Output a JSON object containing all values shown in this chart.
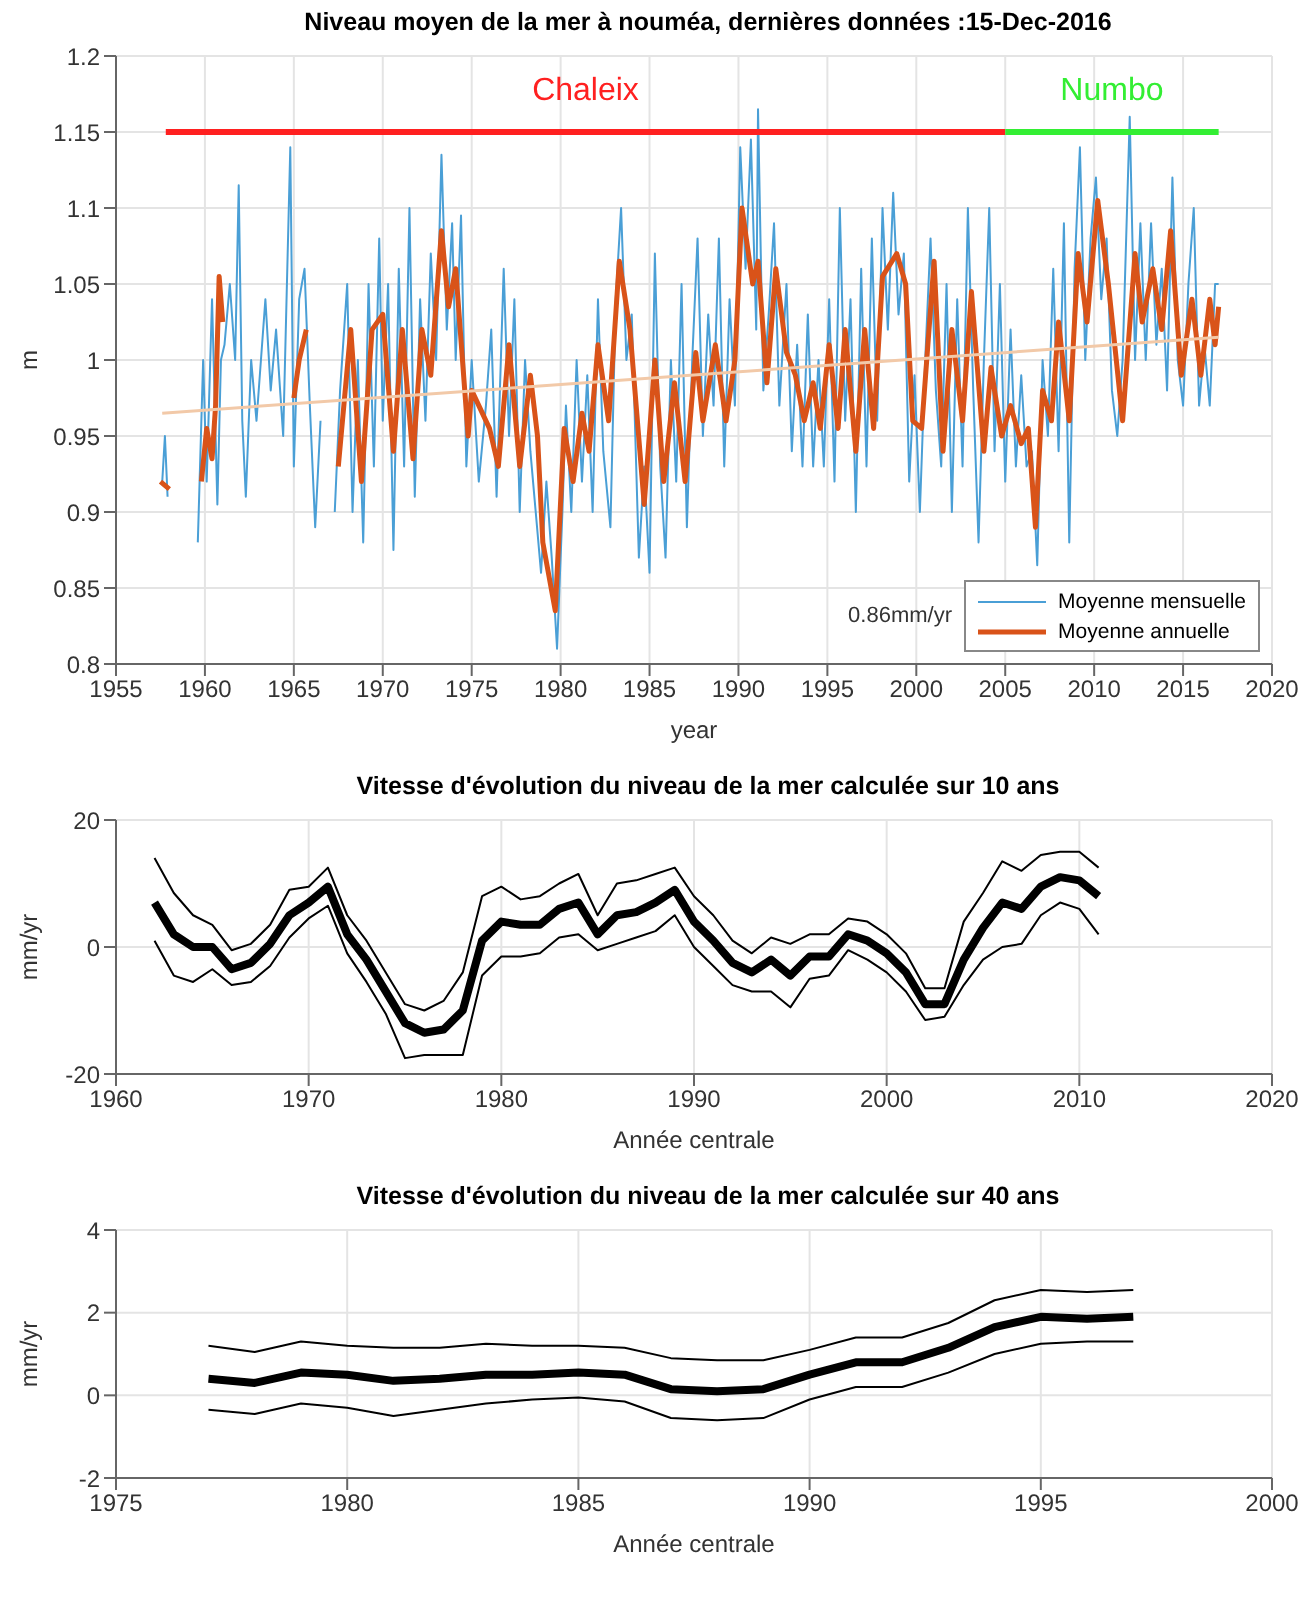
{
  "chart_data": [
    {
      "type": "line",
      "title": "Niveau moyen de la mer à nouméa, dernières données :15-Dec-2016",
      "xlabel": "year",
      "ylabel": "m",
      "xlim": [
        1955,
        2020
      ],
      "xticks": [
        1955,
        1960,
        1965,
        1970,
        1975,
        1980,
        1985,
        1990,
        1995,
        2000,
        2005,
        2010,
        2015,
        2020
      ],
      "ylim": [
        0.8,
        1.2
      ],
      "yticks": [
        0.8,
        0.85,
        0.9,
        0.95,
        1,
        1.05,
        1.1,
        1.15,
        1.2
      ],
      "grid": true,
      "legend": "bottom right",
      "annotations": [
        "0.86mm/yr"
      ],
      "series": [
        {
          "name": "Moyenne mensuelle",
          "color": "#4a9fd6",
          "x": [
            1957.6,
            1957.75,
            1957.9,
            1958.5,
            1959.6,
            1959.9,
            1960.1,
            1960.4,
            1960.7,
            1960.9,
            1961.1,
            1961.4,
            1961.7,
            1961.9,
            1962.1,
            1962.3,
            1962.6,
            1962.9,
            1963.4,
            1963.7,
            1964.0,
            1964.4,
            1964.8,
            1965.0,
            1965.3,
            1965.6,
            1965.9,
            1966.2,
            1966.5,
            1966.9,
            1967.3,
            1967.6,
            1968.0,
            1968.3,
            1968.6,
            1968.9,
            1969.2,
            1969.5,
            1969.8,
            1970.0,
            1970.3,
            1970.6,
            1970.9,
            1971.2,
            1971.5,
            1971.8,
            1972.1,
            1972.4,
            1972.7,
            1973.0,
            1973.3,
            1973.6,
            1973.9,
            1974.1,
            1974.4,
            1974.7,
            1975.0,
            1975.4,
            1975.8,
            1976.1,
            1976.4,
            1976.8,
            1977.1,
            1977.4,
            1977.7,
            1978.0,
            1978.3,
            1978.6,
            1978.9,
            1979.2,
            1979.5,
            1979.8,
            1980.1,
            1980.3,
            1980.6,
            1980.9,
            1981.2,
            1981.5,
            1981.8,
            1982.1,
            1982.4,
            1982.8,
            1983.1,
            1983.4,
            1983.7,
            1984.0,
            1984.4,
            1984.7,
            1985.0,
            1985.3,
            1985.6,
            1985.9,
            1986.2,
            1986.5,
            1986.8,
            1987.1,
            1987.4,
            1987.7,
            1988.0,
            1988.3,
            1988.6,
            1988.9,
            1989.2,
            1989.5,
            1989.8,
            1990.1,
            1990.4,
            1990.7,
            1991.0,
            1991.1,
            1991.4,
            1991.7,
            1992.0,
            1992.3,
            1992.7,
            1993.0,
            1993.3,
            1993.6,
            1993.9,
            1994.2,
            1994.5,
            1994.8,
            1995.1,
            1995.4,
            1995.7,
            1996.0,
            1996.3,
            1996.6,
            1996.9,
            1997.2,
            1997.5,
            1997.8,
            1998.1,
            1998.4,
            1998.7,
            1999.0,
            1999.3,
            1999.6,
            1999.9,
            2000.2,
            2000.5,
            2000.8,
            2001.1,
            2001.4,
            2001.7,
            2002.0,
            2002.3,
            2002.6,
            2002.9,
            2003.2,
            2003.5,
            2003.8,
            2004.1,
            2004.4,
            2004.7,
            2005.0,
            2005.3,
            2005.6,
            2005.9,
            2006.2,
            2006.5,
            2006.8,
            2007.1,
            2007.4,
            2007.7,
            2008.0,
            2008.3,
            2008.6,
            2008.9,
            2009.2,
            2009.5,
            2009.8,
            2010.1,
            2010.4,
            2010.7,
            2011.0,
            2011.3,
            2011.6,
            2012.0,
            2012.3,
            2012.6,
            2012.9,
            2013.2,
            2013.5,
            2013.8,
            2014.1,
            2014.4,
            2014.7,
            2015.0,
            2015.3,
            2015.6,
            2015.9,
            2016.2,
            2016.5,
            2016.8,
            2017.0
          ],
          "values": [
            0.92,
            0.95,
            0.91,
            null,
            0.88,
            1.0,
            0.92,
            1.04,
            0.905,
            1.0,
            1.01,
            1.05,
            1.0,
            1.115,
            0.96,
            0.91,
            1.0,
            0.96,
            1.04,
            0.98,
            1.02,
            0.95,
            1.14,
            0.93,
            1.04,
            1.06,
            0.97,
            0.89,
            0.96,
            null,
            0.9,
            0.98,
            1.05,
            0.9,
            1.0,
            0.88,
            1.05,
            0.93,
            1.08,
            0.96,
            1.05,
            0.875,
            1.06,
            0.93,
            1.1,
            0.91,
            1.04,
            0.96,
            1.07,
            1.0,
            1.135,
            1.02,
            1.09,
            1.0,
            1.095,
            0.93,
            1.0,
            0.92,
            0.97,
            1.02,
            0.91,
            1.06,
            0.95,
            1.04,
            0.9,
            1.0,
            0.94,
            0.9,
            0.86,
            0.92,
            0.87,
            0.81,
            0.9,
            0.97,
            0.9,
            1.0,
            0.92,
            0.99,
            0.9,
            1.04,
            0.94,
            0.89,
            1.04,
            1.1,
            1.0,
            1.03,
            0.87,
            0.93,
            0.86,
            1.07,
            0.93,
            0.87,
            1.0,
            0.92,
            1.05,
            0.89,
            1.0,
            1.08,
            0.95,
            1.03,
            0.97,
            1.08,
            0.93,
            1.04,
            0.97,
            1.14,
            1.06,
            1.145,
            1.02,
            1.165,
            0.98,
            1.03,
            1.09,
            0.97,
            1.05,
            0.94,
            1.01,
            0.93,
            1.03,
            0.93,
            1.0,
            0.93,
            1.04,
            0.92,
            1.1,
            0.96,
            1.04,
            0.9,
            1.06,
            0.93,
            1.08,
            0.96,
            1.1,
            1.02,
            1.11,
            1.03,
            1.07,
            0.92,
            0.99,
            0.9,
            1.0,
            1.08,
            0.98,
            0.93,
            1.05,
            0.9,
            1.04,
            0.93,
            1.1,
            0.98,
            0.88,
            1.0,
            1.1,
            0.94,
            1.05,
            0.92,
            1.02,
            0.93,
            0.99,
            0.93,
            0.94,
            0.865,
            1.0,
            0.95,
            1.06,
            0.94,
            1.09,
            0.88,
            1.06,
            1.14,
            1.0,
            1.08,
            1.12,
            1.04,
            1.08,
            0.98,
            0.95,
            1.0,
            1.16,
            1.0,
            1.09,
            1.0,
            1.09,
            1.01,
            1.06,
            0.98,
            1.12,
            1.0,
            0.97,
            1.05,
            1.1,
            0.97,
            1.01,
            0.97,
            1.05,
            1.05
          ]
        },
        {
          "name": "Moyenne annuelle",
          "color": "#d95319",
          "x": [
            1957.5,
            1958.0,
            1958.5,
            1959.8,
            1960.1,
            1960.4,
            1960.6,
            1960.8,
            1961.0,
            1961.5,
            1965.0,
            1965.3,
            1965.7,
            1966.5,
            1967.5,
            1968.2,
            1968.8,
            1969.4,
            1970.0,
            1970.6,
            1971.1,
            1971.7,
            1972.2,
            1972.7,
            1973.3,
            1973.7,
            1974.1,
            1974.8,
            1975.0,
            1976.0,
            1976.5,
            1977.1,
            1977.7,
            1978.3,
            1978.7,
            1979.0,
            1979.7,
            1980.2,
            1980.7,
            1981.2,
            1981.6,
            1982.1,
            1982.7,
            1983.3,
            1983.9,
            1984.7,
            1985.3,
            1985.8,
            1986.4,
            1987.0,
            1987.6,
            1988.0,
            1988.7,
            1989.3,
            1989.8,
            1990.2,
            1990.8,
            1991.1,
            1991.6,
            1992.1,
            1992.7,
            1993.2,
            1993.7,
            1994.2,
            1994.6,
            1995.1,
            1995.6,
            1996.0,
            1996.6,
            1997.1,
            1997.6,
            1998.1,
            1998.9,
            1999.4,
            1999.8,
            2000.3,
            2001.0,
            2001.5,
            2002.0,
            2002.6,
            2003.1,
            2003.8,
            2004.2,
            2004.8,
            2005.3,
            2005.9,
            2006.3,
            2006.7,
            2007.1,
            2007.6,
            2008.0,
            2008.6,
            2009.1,
            2009.6,
            2010.2,
            2010.8,
            2011.6,
            2012.3,
            2012.7,
            2013.3,
            2013.8,
            2014.3,
            2014.9,
            2015.5,
            2016.0,
            2016.5,
            2016.8,
            2017.0
          ],
          "values": [
            0.92,
            0.915,
            null,
            0.92,
            0.955,
            0.935,
            0.97,
            1.055,
            1.025,
            null,
            0.975,
            1.0,
            1.02,
            null,
            0.93,
            1.02,
            0.92,
            1.02,
            1.03,
            0.94,
            1.02,
            0.935,
            1.02,
            0.99,
            1.085,
            1.035,
            1.06,
            0.95,
            0.98,
            0.955,
            0.93,
            1.01,
            0.93,
            0.99,
            0.95,
            0.88,
            0.835,
            0.955,
            0.92,
            0.965,
            0.94,
            1.01,
            0.96,
            1.065,
            1.02,
            0.905,
            1.0,
            0.92,
            0.985,
            0.92,
            1.005,
            0.96,
            1.01,
            0.96,
            1.0,
            1.1,
            1.05,
            1.065,
            0.985,
            1.06,
            1.005,
            0.99,
            0.96,
            0.985,
            0.955,
            1.01,
            0.955,
            1.02,
            0.94,
            1.02,
            0.955,
            1.055,
            1.07,
            1.05,
            0.96,
            0.955,
            1.065,
            0.94,
            1.02,
            0.96,
            1.045,
            0.94,
            0.995,
            0.95,
            0.97,
            0.945,
            0.955,
            0.89,
            0.98,
            0.96,
            1.025,
            0.96,
            1.07,
            1.025,
            1.105,
            1.05,
            0.96,
            1.07,
            1.025,
            1.06,
            1.02,
            1.085,
            0.99,
            1.04,
            0.99,
            1.04,
            1.01,
            1.035
          ]
        },
        {
          "color": "#f2c9a8",
          "x": [
            1957.6,
            2017.0
          ],
          "values": [
            0.965,
            1.015
          ]
        },
        {
          "name": "Chaleix",
          "color": "#ff2020",
          "x": [
            1957.8,
            2005.0
          ],
          "values": [
            1.15,
            1.15
          ]
        },
        {
          "name": "Numbo",
          "color": "#33ee33",
          "x": [
            2005.0,
            2017.0
          ],
          "values": [
            1.15,
            1.15
          ]
        }
      ]
    },
    {
      "type": "line",
      "title": "Vitesse d'évolution du niveau de la mer calculée sur 10 ans",
      "xlabel": "Année centrale",
      "ylabel": "mm/yr",
      "xlim": [
        1960,
        2020
      ],
      "xticks": [
        1960,
        1970,
        1980,
        1990,
        2000,
        2010,
        2020
      ],
      "ylim": [
        -20,
        20
      ],
      "yticks": [
        -20,
        0,
        20
      ],
      "grid": true,
      "series": [
        {
          "color": "#000000",
          "x": [
            1962,
            1963,
            1964,
            1965,
            1966,
            1967,
            1968,
            1969,
            1970,
            1971,
            1972,
            1973,
            1974,
            1975,
            1976,
            1977,
            1978,
            1979,
            1980,
            1981,
            1982,
            1983,
            1984,
            1985,
            1986,
            1987,
            1988,
            1989,
            1990,
            1991,
            1992,
            1993,
            1994,
            1995,
            1996,
            1997,
            1998,
            1999,
            2000,
            2001,
            2002,
            2003,
            2004,
            2005,
            2006,
            2007,
            2008,
            2009,
            2010,
            2011
          ],
          "values": [
            7,
            2,
            0,
            0,
            -3.5,
            -2.5,
            0.5,
            5,
            7,
            9.5,
            2,
            -2,
            -7,
            -12,
            -13.5,
            -13,
            -10,
            1,
            4,
            3.5,
            3.5,
            6,
            7,
            2,
            5,
            5.5,
            7,
            9,
            4,
            1,
            -2.5,
            -4,
            -2,
            -4.5,
            -1.5,
            -1.5,
            2,
            1,
            -1,
            -4,
            -9,
            -9,
            -2,
            3,
            7,
            6,
            9.5,
            11,
            10.5,
            8
          ]
        },
        {
          "color": "#000000",
          "x": [
            1962,
            1963,
            1964,
            1965,
            1966,
            1967,
            1968,
            1969,
            1970,
            1971,
            1972,
            1973,
            1974,
            1975,
            1976,
            1977,
            1978,
            1979,
            1980,
            1981,
            1982,
            1983,
            1984,
            1985,
            1986,
            1987,
            1988,
            1989,
            1990,
            1991,
            1992,
            1993,
            1994,
            1995,
            1996,
            1997,
            1998,
            1999,
            2000,
            2001,
            2002,
            2003,
            2004,
            2005,
            2006,
            2007,
            2008,
            2009,
            2010,
            2011
          ],
          "values": [
            14,
            8.5,
            5,
            3.5,
            -0.5,
            0.5,
            3.5,
            9,
            9.5,
            12.5,
            5,
            1,
            -4,
            -9,
            -10,
            -8.5,
            -4,
            8,
            9.5,
            7.5,
            8,
            10,
            11.5,
            5,
            10,
            10.5,
            11.5,
            12.5,
            8,
            5,
            1,
            -1,
            1.5,
            0.5,
            2,
            2,
            4.5,
            4,
            2,
            -1,
            -6.5,
            -6.5,
            4,
            8.5,
            13.5,
            12,
            14.5,
            15,
            15,
            12.5
          ]
        },
        {
          "color": "#000000",
          "x": [
            1962,
            1963,
            1964,
            1965,
            1966,
            1967,
            1968,
            1969,
            1970,
            1971,
            1972,
            1973,
            1974,
            1975,
            1976,
            1977,
            1978,
            1979,
            1980,
            1981,
            1982,
            1983,
            1984,
            1985,
            1986,
            1987,
            1988,
            1989,
            1990,
            1991,
            1992,
            1993,
            1994,
            1995,
            1996,
            1997,
            1998,
            1999,
            2000,
            2001,
            2002,
            2003,
            2004,
            2005,
            2006,
            2007,
            2008,
            2009,
            2010,
            2011
          ],
          "values": [
            1,
            -4.5,
            -5.5,
            -3.5,
            -6,
            -5.5,
            -3,
            1.5,
            4.5,
            6.5,
            -1,
            -5.5,
            -10.5,
            -17.5,
            -17,
            -17,
            -17,
            -4.5,
            -1.5,
            -1.5,
            -1,
            1.5,
            2,
            -0.5,
            0.5,
            1.5,
            2.5,
            5,
            0,
            -3,
            -6,
            -7,
            -7,
            -9.5,
            -5,
            -4.5,
            -0.5,
            -2,
            -4,
            -7,
            -11.5,
            -11,
            -6,
            -2,
            0,
            0.5,
            5,
            7,
            6,
            2
          ]
        }
      ]
    },
    {
      "type": "line",
      "title": "Vitesse d'évolution du niveau de la mer calculée sur 40 ans",
      "xlabel": "Année centrale",
      "ylabel": "mm/yr",
      "xlim": [
        1975,
        2000
      ],
      "xticks": [
        1975,
        1980,
        1985,
        1990,
        1995,
        2000
      ],
      "ylim": [
        -2,
        4
      ],
      "yticks": [
        -2,
        0,
        2,
        4
      ],
      "grid": true,
      "series": [
        {
          "color": "#000000",
          "x": [
            1977,
            1978,
            1979,
            1980,
            1981,
            1982,
            1983,
            1984,
            1985,
            1986,
            1987,
            1988,
            1989,
            1990,
            1991,
            1992,
            1993,
            1994,
            1995,
            1996,
            1997
          ],
          "values": [
            0.4,
            0.3,
            0.55,
            0.5,
            0.35,
            0.4,
            0.5,
            0.5,
            0.55,
            0.5,
            0.15,
            0.1,
            0.15,
            0.5,
            0.8,
            0.8,
            1.15,
            1.65,
            1.9,
            1.85,
            1.9
          ]
        },
        {
          "color": "#000000",
          "x": [
            1977,
            1978,
            1979,
            1980,
            1981,
            1982,
            1983,
            1984,
            1985,
            1986,
            1987,
            1988,
            1989,
            1990,
            1991,
            1992,
            1993,
            1994,
            1995,
            1996,
            1997
          ],
          "values": [
            1.2,
            1.05,
            1.3,
            1.2,
            1.15,
            1.15,
            1.25,
            1.2,
            1.2,
            1.15,
            0.9,
            0.85,
            0.85,
            1.1,
            1.4,
            1.4,
            1.75,
            2.3,
            2.55,
            2.5,
            2.55
          ]
        },
        {
          "color": "#000000",
          "x": [
            1977,
            1978,
            1979,
            1980,
            1981,
            1982,
            1983,
            1984,
            1985,
            1986,
            1987,
            1988,
            1989,
            1990,
            1991,
            1992,
            1993,
            1994,
            1995,
            1996,
            1997
          ],
          "values": [
            -0.35,
            -0.45,
            -0.2,
            -0.3,
            -0.5,
            -0.35,
            -0.2,
            -0.1,
            -0.05,
            -0.15,
            -0.55,
            -0.6,
            -0.55,
            -0.1,
            0.2,
            0.2,
            0.55,
            1.0,
            1.25,
            1.3,
            1.3
          ]
        }
      ]
    }
  ]
}
